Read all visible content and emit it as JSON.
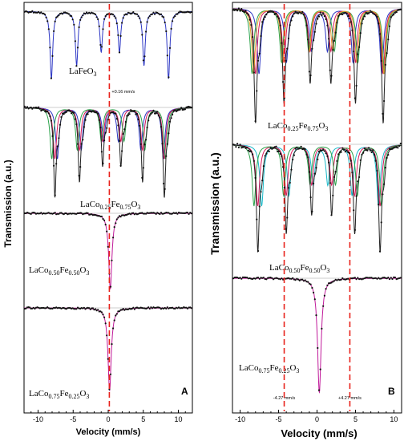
{
  "chart_data": [
    {
      "type": "line",
      "panel_label": "A",
      "xlabel": "Velocity (mm/s)",
      "ylabel": "Transmission (a.u.)",
      "xlim": [
        -12,
        12
      ],
      "xticks": [
        -10,
        -5,
        0,
        5,
        10
      ],
      "vertical_lines": [
        0.16
      ],
      "annotations": [
        {
          "text": "+0.16 mm/s",
          "x": 0.16
        }
      ],
      "spectra": [
        {
          "label_parts": [
            "LaFeO",
            "3",
            ""
          ],
          "type": "sextet",
          "peaks": [
            -8.1,
            -4.5,
            -1.0,
            1.6,
            5.1,
            8.6
          ],
          "depths": [
            0.75,
            0.6,
            0.45,
            0.45,
            0.6,
            0.75
          ],
          "fit_color": "#2b35c4",
          "components": []
        },
        {
          "label_parts": [
            "LaCo",
            "0.25",
            "Fe",
            "0.75",
            "O",
            "3"
          ],
          "type": "sextets",
          "peaks": [
            -7.6,
            -4.1,
            -0.8,
            1.8,
            4.9,
            8.0
          ],
          "depths": [
            0.85,
            0.7,
            0.55,
            0.55,
            0.7,
            0.85
          ],
          "fit_color": "#222222",
          "components": [
            {
              "color": "#2b35c4",
              "shift": -0.35
            },
            {
              "color": "#d6195a",
              "shift": 0.0
            },
            {
              "color": "#2aa24a",
              "shift": 0.45
            }
          ]
        },
        {
          "label_parts": [
            "LaCo",
            "0.50",
            "Fe",
            "0.50",
            "O",
            "3"
          ],
          "type": "singlet",
          "peaks": [
            0.3
          ],
          "depths": [
            0.9
          ],
          "fit_color": "#c0199a",
          "components": []
        },
        {
          "label_parts": [
            "LaCo",
            "0.75",
            "Fe",
            "0.25",
            "O",
            "3"
          ],
          "type": "singlet",
          "peaks": [
            0.2
          ],
          "depths": [
            0.92
          ],
          "fit_color": "#c0199a",
          "components": []
        }
      ]
    },
    {
      "type": "line",
      "panel_label": "B",
      "xlabel": "Velocity (mm/s)",
      "ylabel": "Transmission (a.u.)",
      "xlim": [
        -11,
        11
      ],
      "xticks": [
        -10,
        -5,
        0,
        5,
        10
      ],
      "vertical_lines": [
        -4.27,
        4.27
      ],
      "annotations": [
        {
          "text": "-4.27 mm/s",
          "x": -4.27
        },
        {
          "text": "+4.27 mm/s",
          "x": 4.27
        }
      ],
      "spectra": [
        {
          "label_parts": [
            "LaCo",
            "0.25",
            "Fe",
            "0.75",
            "O",
            "3"
          ],
          "type": "sextets",
          "peaks": [
            -8.0,
            -4.3,
            -0.9,
            1.8,
            5.0,
            8.6
          ],
          "depths": [
            0.85,
            0.7,
            0.55,
            0.55,
            0.7,
            0.85
          ],
          "fit_color": "#222222",
          "components": [
            {
              "color": "#2b35c4",
              "shift": -0.45
            },
            {
              "color": "#d6195a",
              "shift": 0.0
            },
            {
              "color": "#2aa24a",
              "shift": 0.45
            },
            {
              "color": "#e5a02a",
              "shift": 0.25
            }
          ]
        },
        {
          "label_parts": [
            "LaCo",
            "0.50",
            "Fe",
            "0.50",
            "O",
            "3"
          ],
          "type": "sextets",
          "peaks": [
            -7.7,
            -4.0,
            -0.7,
            1.9,
            4.9,
            8.2
          ],
          "depths": [
            0.85,
            0.7,
            0.55,
            0.55,
            0.7,
            0.85
          ],
          "fit_color": "#222222",
          "components": [
            {
              "color": "#18b8c8",
              "shift": -0.5
            },
            {
              "color": "#d6195a",
              "shift": 0.0
            },
            {
              "color": "#2aa24a",
              "shift": 0.5
            }
          ]
        },
        {
          "label_parts": [
            "LaCo",
            "0.75",
            "Fe",
            "0.25",
            "O",
            "3"
          ],
          "type": "singlet",
          "peaks": [
            0.3
          ],
          "depths": [
            0.92
          ],
          "fit_color": "#c0199a",
          "components": []
        }
      ]
    }
  ]
}
